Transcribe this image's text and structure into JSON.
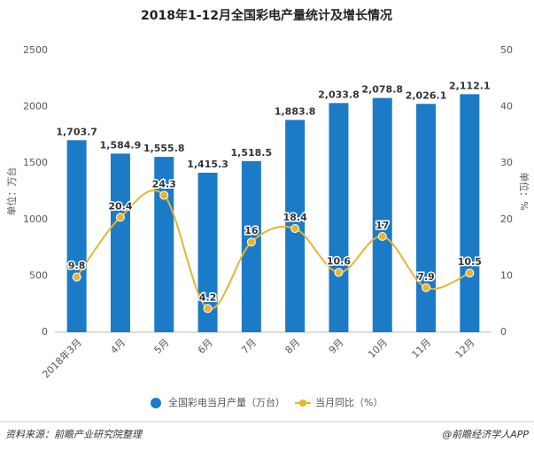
{
  "chart_data": {
    "type": "bar-line",
    "title": "2018年1-12月全国彩电产量统计及增长情况",
    "y_label": "单位：万台",
    "y2_label": "单位：%",
    "categories": [
      "2018年3月",
      "4月",
      "5月",
      "6月",
      "7月",
      "8月",
      "9月",
      "10月",
      "11月",
      "12月"
    ],
    "series": [
      {
        "name": "全国彩电当月产量（万台）",
        "type": "bar",
        "color": "#1b7bc6",
        "values": [
          1703.7,
          1584.9,
          1555.8,
          1415.3,
          1518.5,
          1883.8,
          2033.8,
          2078.8,
          2026.1,
          2112.1
        ],
        "value_labels": [
          "1,703.7",
          "1,584.9",
          "1,555.8",
          "1,415.3",
          "1,518.5",
          "1,883.8",
          "2,033.8",
          "2,078.8",
          "2,026.1",
          "2,112.1"
        ]
      },
      {
        "name": "当月同比（%）",
        "type": "line",
        "axis": "y2",
        "color": "#e8b432",
        "values": [
          9.8,
          20.4,
          24.3,
          4.2,
          16,
          18.4,
          10.6,
          17,
          7.9,
          10.5
        ]
      }
    ],
    "ylim": [
      0,
      2500
    ],
    "yticks": [
      0,
      500,
      1000,
      1500,
      2000,
      2500
    ],
    "y2lim": [
      0,
      50
    ],
    "y2ticks": [
      0,
      10,
      20,
      30,
      40,
      50
    ],
    "grid": false,
    "legend": "bottom",
    "source": "资料来源：前瞻产业研究院整理",
    "credit": "@前瞻经济学人APP"
  }
}
